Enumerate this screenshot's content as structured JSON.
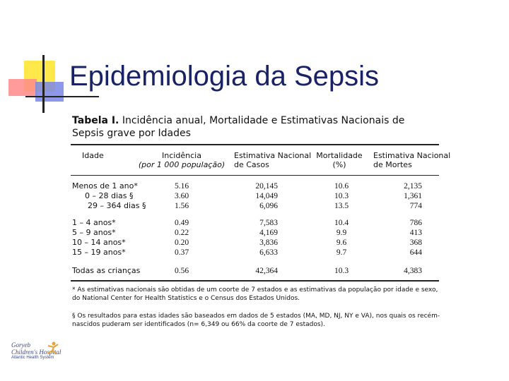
{
  "header": {
    "title": "Epidemiologia da Sepsis"
  },
  "caption": {
    "label": "Tabela I.",
    "text": "Incidência anual, Mortalidade e Estimativas Nacionais de Sepsis grave por Idades"
  },
  "table": {
    "columns": [
      [
        "Idade"
      ],
      [
        "Incidência",
        "(por 1 000 população)"
      ],
      [
        "Estimativa Nacional",
        "de Casos"
      ],
      [
        "Mortalidade",
        "(%)"
      ],
      [
        "Estimativa Nacional",
        "de Mortes"
      ]
    ],
    "rows": [
      [
        "Menos de 1 ano*",
        "5.16",
        "20,145",
        "10.6",
        "2,135"
      ],
      [
        "0 – 28 dias §",
        "3.60",
        "14,049",
        "10.3",
        "1,361"
      ],
      [
        "29 – 364 dias §",
        "1.56",
        "6,096",
        "13.5",
        "774"
      ],
      [
        "1 – 4 anos*",
        "0.49",
        "7,583",
        "10.4",
        "786"
      ],
      [
        "5 – 9 anos*",
        "0.22",
        "4,169",
        "9.9",
        "413"
      ],
      [
        "10 – 14 anos*",
        "0.20",
        "3,836",
        "9.6",
        "368"
      ],
      [
        "15 – 19 anos*",
        "0.37",
        "6,633",
        "9.7",
        "644"
      ],
      [
        "Todas as crianças",
        "0.56",
        "42,364",
        "10.3",
        "4,383"
      ]
    ]
  },
  "footnotes": [
    "* As estimativas nacionais são obtidas de um coorte de 7 estados e as estimativas da população por idade e sexo, do National Center for Health Statistics e o Census dos Estados Unidos.",
    "§ Os resultados para estas idades são baseados em dados de 5 estados (MA, MD, NJ, NY e VA), nos quais os recém-nascidos puderam ser identificados (n= 6,349 ou 66% da coorte de 7 estados)."
  ],
  "logo": {
    "name": "Goryeb",
    "subtitle": "Children's Hospital",
    "system": "Atlantic Health System"
  }
}
